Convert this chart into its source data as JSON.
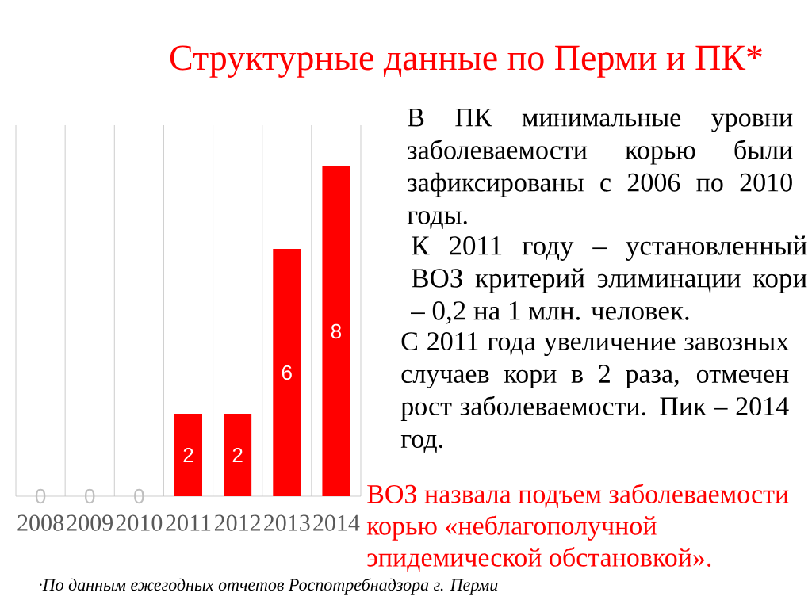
{
  "chart_data": {
    "type": "bar",
    "title": "Структурные данные по Перми и ПК*",
    "categories": [
      "2008",
      "2009",
      "2010",
      "2011",
      "2012",
      "2013",
      "2014"
    ],
    "values": [
      0,
      0,
      0,
      2,
      2,
      6,
      8
    ],
    "color": "#ff0000",
    "ylim": [
      0,
      9
    ],
    "data_labels": true,
    "grid": "x",
    "tick_labels": "x",
    "annotations": [
      "В ПК минимальные уровни заболеваемости корью были зафиксированы с 2006 по 2010 годы.",
      "К 2011 году – установленный ВОЗ критерий элиминации кори – 0,2 на 1 млн. человек.",
      "С 2011 года увеличение завозных случаев кори в 2 раза, отмечен рост заболеваемости. Пик – 2014 год.",
      "ВОЗ назвала подъем заболеваемости корью «неблагополучной эпидемической обстановкой».",
      "·По данным ежегодных отчетов Роспотребнадзора г. Перми"
    ]
  }
}
